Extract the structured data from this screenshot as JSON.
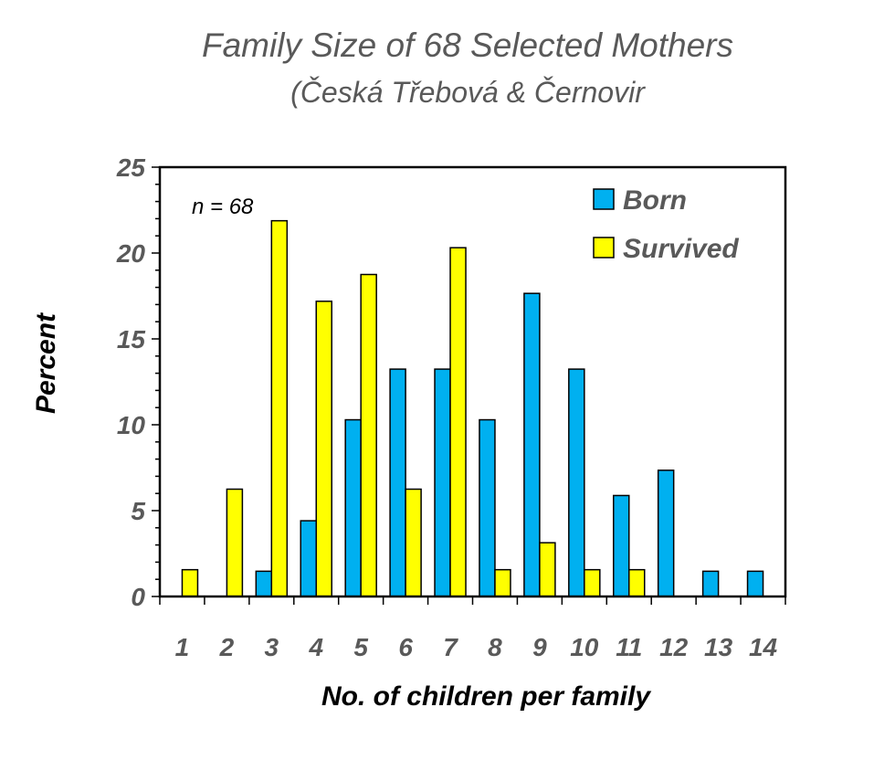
{
  "chart_data": {
    "type": "bar",
    "title": "Family Size of 68 Selected Mothers",
    "subtitle": "(Česká Třebová & Černovir",
    "xlabel": "No. of children per family",
    "ylabel": "Percent",
    "ylim": [
      0,
      25
    ],
    "yticks": [
      0,
      5,
      10,
      15,
      20,
      25
    ],
    "annotation": "n = 68",
    "legend_position": "top-right",
    "grid": false,
    "categories": [
      "1",
      "2",
      "3",
      "4",
      "5",
      "6",
      "7",
      "8",
      "9",
      "10",
      "11",
      "12",
      "13",
      "14"
    ],
    "series": [
      {
        "name": "Born",
        "color": "#00B0F0",
        "values": [
          0,
          0,
          1.47,
          4.41,
          10.29,
          13.24,
          13.24,
          10.29,
          17.65,
          13.24,
          5.88,
          7.35,
          1.47,
          1.47
        ]
      },
      {
        "name": "Survived",
        "color": "#FFFF00",
        "values": [
          1.56,
          6.25,
          21.88,
          17.19,
          18.75,
          6.25,
          20.31,
          1.56,
          3.13,
          1.56,
          1.56,
          0,
          0,
          0
        ]
      }
    ]
  }
}
